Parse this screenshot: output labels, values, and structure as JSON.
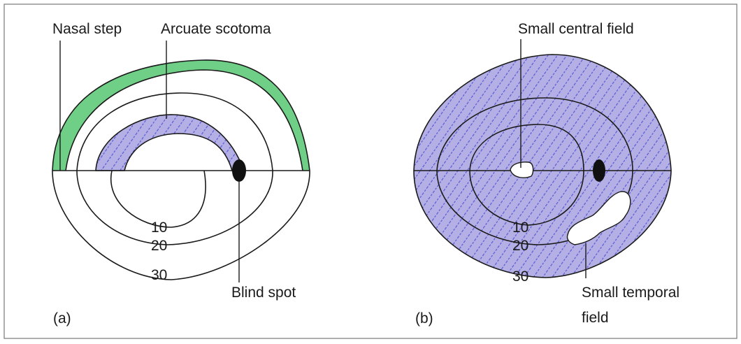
{
  "colors": {
    "scotoma_fill": "#b4b0e6",
    "hatch": "#5a5ad2",
    "nasal_step_fill": "#6fcf86",
    "stroke": "#1a1a1a",
    "blind_spot": "#111111",
    "frame": "#777777"
  },
  "panel_a": {
    "label": "(a)",
    "labels": {
      "nasal_step": "Nasal step",
      "arcuate_scotoma": "Arcuate scotoma",
      "blind_spot": "Blind spot"
    },
    "isopters": [
      "10",
      "20",
      "30"
    ]
  },
  "panel_b": {
    "label": "(b)",
    "labels": {
      "small_central_field": "Small central field",
      "small_temporal_field_line1": "Small temporal",
      "small_temporal_field_line2": "field"
    },
    "isopters": [
      "10",
      "20",
      "30"
    ]
  }
}
